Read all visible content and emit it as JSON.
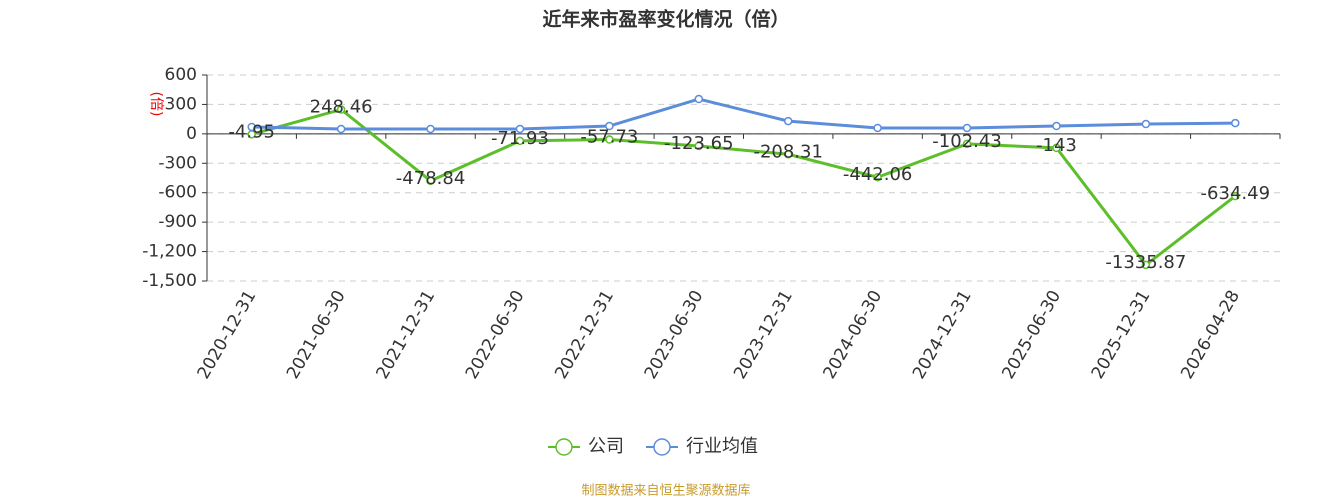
{
  "chart_data": {
    "type": "line",
    "title": "近年来市盈率变化情况（倍）",
    "y_label": "(倍)",
    "categories": [
      "2020-12-31",
      "2021-06-30",
      "2021-12-31",
      "2022-06-30",
      "2022-12-31",
      "2023-06-30",
      "2023-12-31",
      "2024-06-30",
      "2024-12-31",
      "2025-06-30",
      "2025-12-31",
      "2026-04-28"
    ],
    "series": [
      {
        "name": "公司",
        "color": "#5cbf2a",
        "values": [
          -4.95,
          248.46,
          -478.84,
          -71.93,
          -57.73,
          -123.65,
          -208.31,
          -442.06,
          -102.43,
          -143,
          -1335.87,
          -634.49
        ]
      },
      {
        "name": "行业均值",
        "color": "#5b8ddb",
        "values": [
          70,
          50,
          50,
          50,
          80,
          355,
          130,
          60,
          60,
          80,
          100,
          110
        ]
      }
    ],
    "ylim": [
      -1500,
      600
    ],
    "yticks": [
      600,
      300,
      0,
      -300,
      -600,
      -900,
      {
        "value": -1200,
        "label": "-1,200"
      },
      {
        "value": -1500,
        "label": "-1,500"
      }
    ],
    "grid": true,
    "source": "制图数据来自恒生聚源数据库"
  }
}
